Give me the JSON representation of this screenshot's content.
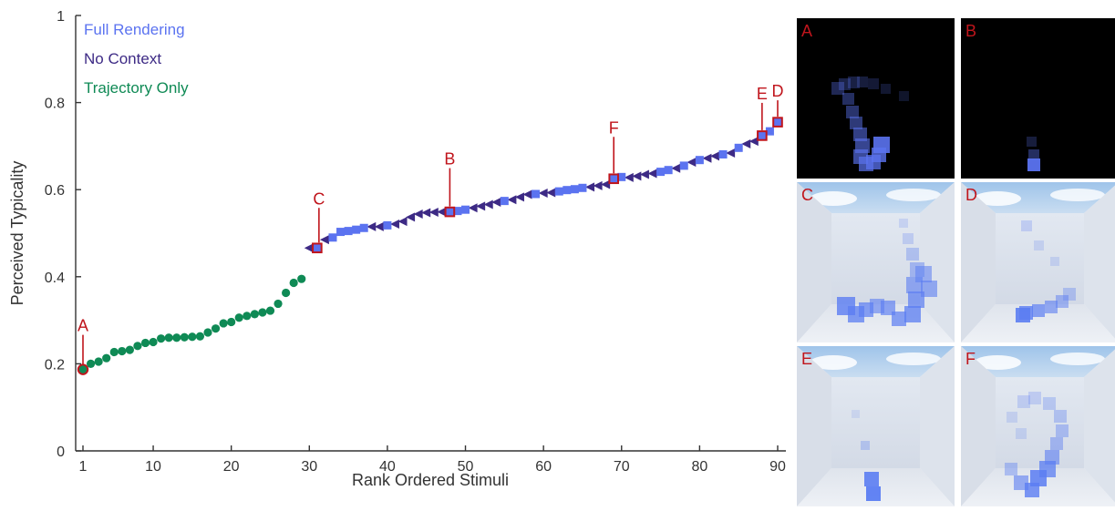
{
  "chart_data": {
    "type": "scatter",
    "xlabel": "Rank Ordered Stimuli",
    "ylabel": "Perceived Typicality",
    "xlim": [
      0,
      91
    ],
    "ylim": [
      0,
      1
    ],
    "xticks": [
      1,
      10,
      20,
      30,
      40,
      50,
      60,
      70,
      80,
      90
    ],
    "yticks": [
      0,
      0.2,
      0.4,
      0.6,
      0.8,
      1
    ],
    "ytick_labels": [
      "0",
      "0.2",
      "0.4",
      "0.6",
      "0.8",
      "1"
    ],
    "legend_position": "top-left",
    "colors": {
      "full_rendering": "#5b73f0",
      "no_context": "#3d2a85",
      "trajectory_only": "#0f8a55",
      "callout": "#c0151c"
    },
    "series": [
      {
        "name": "Trajectory Only",
        "marker": "circle",
        "points": [
          [
            1,
            0.187
          ],
          [
            2,
            0.2
          ],
          [
            3,
            0.205
          ],
          [
            4,
            0.213
          ],
          [
            5,
            0.227
          ],
          [
            6,
            0.229
          ],
          [
            7,
            0.232
          ],
          [
            8,
            0.241
          ],
          [
            9,
            0.248
          ],
          [
            10,
            0.25
          ],
          [
            11,
            0.258
          ],
          [
            12,
            0.26
          ],
          [
            13,
            0.26
          ],
          [
            14,
            0.261
          ],
          [
            15,
            0.262
          ],
          [
            16,
            0.263
          ],
          [
            17,
            0.272
          ],
          [
            18,
            0.281
          ],
          [
            19,
            0.293
          ],
          [
            20,
            0.296
          ],
          [
            21,
            0.306
          ],
          [
            22,
            0.31
          ],
          [
            23,
            0.314
          ],
          [
            24,
            0.318
          ],
          [
            25,
            0.322
          ],
          [
            26,
            0.338
          ],
          [
            27,
            0.363
          ],
          [
            28,
            0.386
          ],
          [
            29,
            0.395
          ]
        ]
      },
      {
        "name": "No Context",
        "marker": "triangle",
        "points": [
          [
            30,
            0.466
          ],
          [
            32,
            0.485
          ],
          [
            38,
            0.515
          ],
          [
            39,
            0.515
          ],
          [
            41,
            0.521
          ],
          [
            42,
            0.527
          ],
          [
            43,
            0.537
          ],
          [
            44,
            0.544
          ],
          [
            45,
            0.547
          ],
          [
            46,
            0.548
          ],
          [
            47,
            0.549
          ],
          [
            51,
            0.558
          ],
          [
            52,
            0.562
          ],
          [
            53,
            0.566
          ],
          [
            54,
            0.571
          ],
          [
            56,
            0.577
          ],
          [
            57,
            0.583
          ],
          [
            58,
            0.589
          ],
          [
            60,
            0.592
          ],
          [
            61,
            0.593
          ],
          [
            66,
            0.606
          ],
          [
            67,
            0.609
          ],
          [
            68,
            0.612
          ],
          [
            71,
            0.628
          ],
          [
            72,
            0.631
          ],
          [
            73,
            0.635
          ],
          [
            74,
            0.637
          ],
          [
            77,
            0.649
          ],
          [
            79,
            0.663
          ],
          [
            81,
            0.672
          ],
          [
            82,
            0.677
          ],
          [
            84,
            0.684
          ],
          [
            86,
            0.705
          ],
          [
            87,
            0.711
          ]
        ]
      },
      {
        "name": "Full Rendering",
        "marker": "square",
        "points": [
          [
            31,
            0.466
          ],
          [
            33,
            0.49
          ],
          [
            34,
            0.503
          ],
          [
            35,
            0.505
          ],
          [
            36,
            0.508
          ],
          [
            37,
            0.512
          ],
          [
            40,
            0.518
          ],
          [
            48,
            0.549
          ],
          [
            49,
            0.551
          ],
          [
            50,
            0.554
          ],
          [
            55,
            0.574
          ],
          [
            59,
            0.59
          ],
          [
            62,
            0.596
          ],
          [
            63,
            0.599
          ],
          [
            64,
            0.601
          ],
          [
            65,
            0.604
          ],
          [
            69,
            0.625
          ],
          [
            70,
            0.629
          ],
          [
            75,
            0.641
          ],
          [
            76,
            0.645
          ],
          [
            78,
            0.655
          ],
          [
            80,
            0.668
          ],
          [
            83,
            0.681
          ],
          [
            85,
            0.696
          ],
          [
            88,
            0.724
          ],
          [
            89,
            0.734
          ],
          [
            90,
            0.755
          ]
        ]
      }
    ],
    "annotations": [
      {
        "label": "A",
        "x": 1,
        "y": 0.187
      },
      {
        "label": "B",
        "x": 48,
        "y": 0.549
      },
      {
        "label": "C",
        "x": 31,
        "y": 0.466
      },
      {
        "label": "D",
        "x": 90,
        "y": 0.755
      },
      {
        "label": "E",
        "x": 88,
        "y": 0.724
      },
      {
        "label": "F",
        "x": 69,
        "y": 0.625
      }
    ]
  },
  "panels": [
    {
      "letter": "A",
      "scene": "dark"
    },
    {
      "letter": "B",
      "scene": "dark"
    },
    {
      "letter": "C",
      "scene": "room"
    },
    {
      "letter": "D",
      "scene": "room"
    },
    {
      "letter": "E",
      "scene": "room"
    },
    {
      "letter": "F",
      "scene": "room"
    }
  ]
}
